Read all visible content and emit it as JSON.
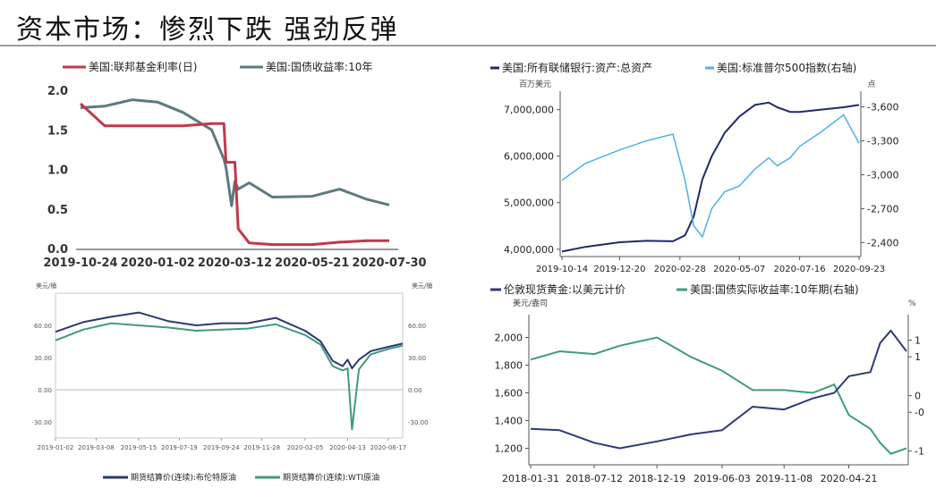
{
  "page": {
    "title": "资本市场：惨烈下跌 强劲反弹"
  },
  "chart_data": [
    {
      "type": "line",
      "x": [
        "2019-10-24",
        "2019-11-15",
        "2019-12-10",
        "2020-01-02",
        "2020-01-25",
        "2020-02-20",
        "2020-03-02",
        "2020-03-04",
        "2020-03-09",
        "2020-03-12",
        "2020-03-15",
        "2020-03-25",
        "2020-04-15",
        "2020-05-21",
        "2020-06-15",
        "2020-07-10",
        "2020-07-30"
      ],
      "series": [
        {
          "name": "美国:联邦基金利率(日)",
          "color": "#c0394b",
          "values": [
            1.83,
            1.55,
            1.55,
            1.55,
            1.55,
            1.58,
            1.58,
            1.09,
            1.09,
            1.09,
            0.25,
            0.07,
            0.05,
            0.05,
            0.08,
            0.1,
            0.1
          ]
        },
        {
          "name": "美国:国债收益率:10年",
          "color": "#5d7a7f",
          "values": [
            1.78,
            1.8,
            1.88,
            1.85,
            1.72,
            1.5,
            1.13,
            1.02,
            0.54,
            0.85,
            0.75,
            0.83,
            0.65,
            0.66,
            0.75,
            0.62,
            0.55
          ]
        }
      ],
      "xticks": [
        "2019-10-24",
        "2020-01-02",
        "2020-03-12",
        "2020-05-21",
        "2020-07-30"
      ],
      "yticks": [
        "0.0",
        "0.5",
        "1.0",
        "1.5",
        "2.0"
      ],
      "ylim": [
        0,
        2.0
      ]
    },
    {
      "type": "line",
      "x": [
        "2019-10-14",
        "2019-11-10",
        "2019-12-20",
        "2020-01-20",
        "2020-02-20",
        "2020-03-05",
        "2020-03-15",
        "2020-03-25",
        "2020-04-05",
        "2020-04-20",
        "2020-05-07",
        "2020-05-25",
        "2020-06-10",
        "2020-06-20",
        "2020-07-05",
        "2020-07-16",
        "2020-08-10",
        "2020-09-05",
        "2020-09-23"
      ],
      "series": [
        {
          "name": "美国:所有联储银行:资产:总资产",
          "color": "#1f2a66",
          "axis": "left",
          "values": [
            3950000,
            4050000,
            4150000,
            4180000,
            4170000,
            4300000,
            4700000,
            5500000,
            6000000,
            6500000,
            6850000,
            7100000,
            7150000,
            7050000,
            6950000,
            6950000,
            7000000,
            7050000,
            7100000
          ]
        },
        {
          "name": "美国:标准普尔500指数(右轴)",
          "color": "#4fb2e8",
          "axis": "right",
          "values": [
            2950,
            3100,
            3220,
            3300,
            3360,
            2950,
            2550,
            2450,
            2700,
            2850,
            2900,
            3050,
            3150,
            3080,
            3150,
            3250,
            3380,
            3530,
            3280
          ]
        }
      ],
      "left_unit": "百万美元",
      "right_unit": "点",
      "xticks": [
        "2019-10-14",
        "2019-12-20",
        "2020-02-28",
        "2020-05-07",
        "2020-07-16",
        "2020-09-23"
      ],
      "yticks_left": [
        "4,000,000",
        "5,000,000",
        "6,000,000",
        "7,000,000"
      ],
      "yticks_right": [
        "2,400",
        "2,700",
        "3,000",
        "3,300",
        "3,600"
      ],
      "ylim_left": [
        3900000,
        7300000
      ],
      "ylim_right": [
        2300,
        3700
      ]
    },
    {
      "type": "line",
      "x": [
        "2019-01-02",
        "2019-02-15",
        "2019-04-01",
        "2019-05-15",
        "2019-07-01",
        "2019-08-15",
        "2019-09-24",
        "2019-11-05",
        "2019-12-20",
        "2020-02-05",
        "2020-03-01",
        "2020-03-20",
        "2020-04-05",
        "2020-04-13",
        "2020-04-20",
        "2020-05-01",
        "2020-05-20",
        "2020-06-17",
        "2020-07-10"
      ],
      "series": [
        {
          "name": "期货结算价(连续):布伦特原油",
          "color": "#2c3870",
          "values": [
            54,
            63,
            68,
            72,
            64,
            60,
            62,
            62,
            67,
            55,
            45,
            27,
            22,
            28,
            20,
            28,
            36,
            40,
            43
          ]
        },
        {
          "name": "期货结算价(连续):WTI原油",
          "color": "#3f9a82",
          "values": [
            46,
            56,
            62,
            60,
            58,
            55,
            56,
            57,
            61,
            51,
            42,
            22,
            18,
            20,
            -37,
            19,
            33,
            38,
            41
          ]
        }
      ],
      "unit_left": "美元/桶",
      "unit_right": "美元/桶",
      "xticks": [
        "2019-01-02",
        "2019-03-08",
        "2019-05-15",
        "2019-07-19",
        "2019-09-24",
        "2019-11-28",
        "2020-02-05",
        "2020-04-13",
        "2020-06-17"
      ],
      "yticks": [
        "-30.00",
        "0.00",
        "30.00",
        "60.00"
      ],
      "ylim": [
        -45,
        80
      ]
    },
    {
      "type": "line",
      "x": [
        "2018-01-31",
        "2018-04-15",
        "2018-07-12",
        "2018-09-15",
        "2018-12-19",
        "2019-03-15",
        "2019-06-03",
        "2019-08-20",
        "2019-11-08",
        "2020-01-20",
        "2020-03-15",
        "2020-04-21",
        "2020-06-15",
        "2020-07-10",
        "2020-08-06",
        "2020-09-15"
      ],
      "series": [
        {
          "name": "伦敦现货黄金:以美元计价",
          "color": "#2f3a78",
          "axis": "left",
          "values": [
            1340,
            1330,
            1240,
            1200,
            1250,
            1300,
            1330,
            1500,
            1480,
            1560,
            1600,
            1720,
            1750,
            1960,
            2050,
            1900
          ]
        },
        {
          "name": "美国:国债实际收益率:10年期(右轴)",
          "color": "#3f9a82",
          "axis": "right",
          "values": [
            0.65,
            0.8,
            0.75,
            0.9,
            1.05,
            0.7,
            0.45,
            0.1,
            0.1,
            0.05,
            0.2,
            -0.35,
            -0.6,
            -0.85,
            -1.05,
            -0.95
          ]
        }
      ],
      "left_unit": "美元/盎司",
      "right_unit": "%",
      "xticks": [
        "2018-01-31",
        "2018-07-12",
        "2018-12-19",
        "2019-06-03",
        "2019-11-08",
        "2020-04-21"
      ],
      "yticks_left": [
        "1,200",
        "1,400",
        "1,600",
        "1,800",
        "2,000"
      ],
      "yticks_right": [
        "-1",
        "-0",
        "0",
        "1",
        "1"
      ],
      "ylim_left": [
        1100,
        2100
      ],
      "ylim_right": [
        -1.2,
        1.3
      ]
    }
  ]
}
